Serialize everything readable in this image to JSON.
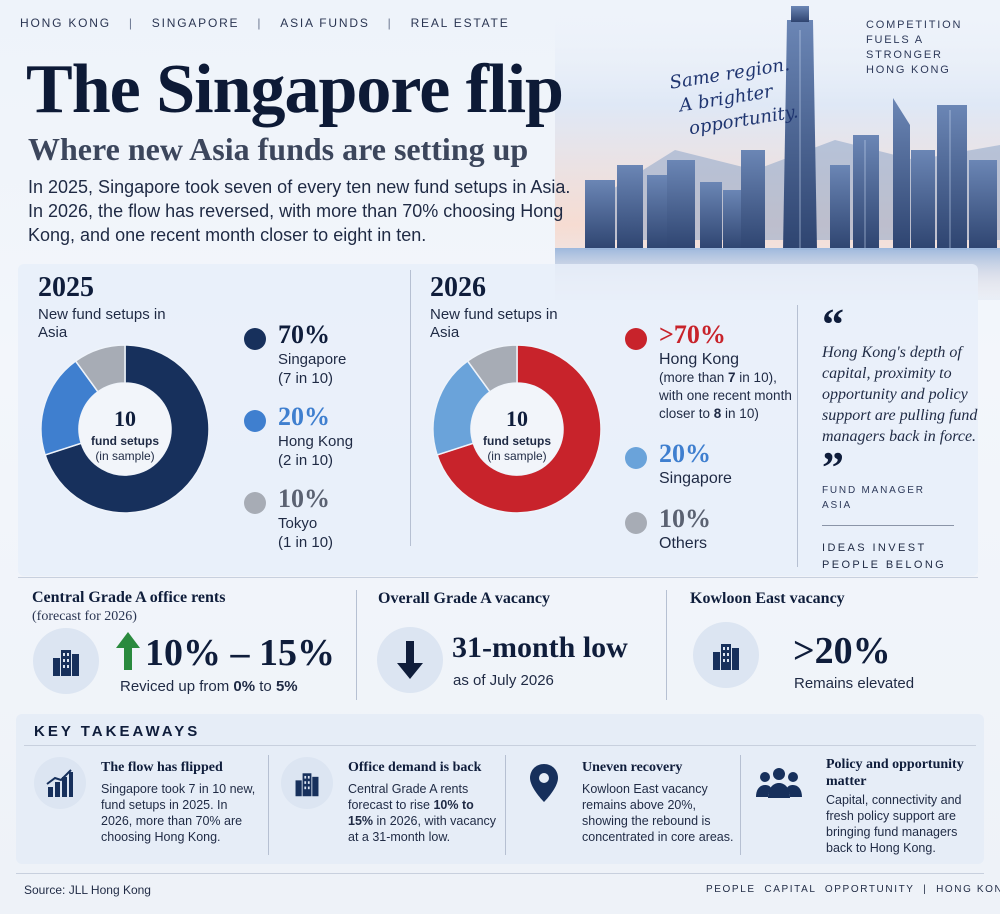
{
  "nav": {
    "items": [
      "HONG KONG",
      "SINGAPORE",
      "ASIA FUNDS",
      "REAL ESTATE"
    ],
    "separator": "|"
  },
  "corner_tag": [
    "COMPETITION",
    "FUELS A STRONGER",
    "HONG KONG"
  ],
  "title": "The Singapore flip",
  "subtitle": "Where new Asia funds are setting up",
  "intro": "In 2025, Singapore took seven of every ten new fund setups in Asia. In 2026, the flow has reversed, with more than 70% choosing Hong Kong, and one recent month closer to eight in ten.",
  "tagline": [
    "Same region.",
    "A brighter",
    "opportunity."
  ],
  "colors": {
    "navy": "#17305c",
    "mid_blue": "#3f7fcf",
    "light_blue": "#6aa3da",
    "grey": "#a7acb5",
    "red": "#c8232b",
    "green": "#2a8a3e"
  },
  "chart_data": [
    {
      "type": "pie",
      "title": "2025",
      "subtitle": "New fund setups in Asia",
      "center": {
        "value": "10",
        "label": "fund setups",
        "note": "(in sample)"
      },
      "slices": [
        {
          "name": "Singapore",
          "value": 70,
          "pct": "70%",
          "detail": "(7 in 10)",
          "color": "#17305c"
        },
        {
          "name": "Hong Kong",
          "value": 20,
          "pct": "20%",
          "detail": "(2 in 10)",
          "color": "#3f7fcf"
        },
        {
          "name": "Tokyo",
          "value": 10,
          "pct": "10%",
          "detail": "(1 in 10)",
          "color": "#a7acb5"
        }
      ]
    },
    {
      "type": "pie",
      "title": "2026",
      "subtitle": "New fund setups in Asia",
      "center": {
        "value": "10",
        "label": "fund setups",
        "note": "(in sample)"
      },
      "slices": [
        {
          "name": "Hong Kong",
          "value": 70,
          "pct": ">70%",
          "detail": "(more than 7 in 10), with one recent month closer to 8 in 10)",
          "color": "#c8232b"
        },
        {
          "name": "Singapore",
          "value": 20,
          "pct": "20%",
          "detail": "",
          "color": "#6aa3da"
        },
        {
          "name": "Others",
          "value": 10,
          "pct": "10%",
          "detail": "",
          "color": "#a7acb5"
        }
      ]
    }
  ],
  "quote": {
    "open": "“",
    "text": "Hong Kong's depth of capital, proximity to opportunity and policy support are pulling fund managers back in force.",
    "close": "”",
    "attribution": [
      "FUND MANAGER",
      "ASIA"
    ],
    "brand": [
      "IDEAS INVEST",
      "PEOPLE BELONG"
    ]
  },
  "metrics": [
    {
      "heading": "Central Grade A office rents",
      "sub": "(forecast for 2026)",
      "value": "10% – 15%",
      "note_prefix": "Reviced up from ",
      "note_a": "0%",
      "note_mid": " to ",
      "note_b": "5%",
      "icon": "office-building-icon",
      "arrow": "arrow-up-icon"
    },
    {
      "heading": "Overall Grade A vacancy",
      "value": "31-month low",
      "note": "as of July 2026",
      "icon": "arrow-down-icon"
    },
    {
      "heading": "Kowloon East vacancy",
      "value": ">20%",
      "note": "Remains elevated",
      "icon": "office-building-icon"
    }
  ],
  "takeaways": {
    "title": "KEY TAKEAWAYS",
    "items": [
      {
        "heading": "The flow has flipped",
        "body": "Singapore took 7 in 10 new, fund setups in 2025. In 2026, more than 70% are choosing Hong Kong.",
        "icon": "bar-chart-growth-icon"
      },
      {
        "heading": "Office demand is back",
        "body_a": "Central Grade A rents forecast to rise ",
        "body_b": "10% to 15%",
        "body_c": " in 2026, with vacancy at a 31-month low.",
        "icon": "office-building-icon"
      },
      {
        "heading": "Uneven recovery",
        "body": "Kowloon East vacancy remains above 20%, showing the rebound is concentrated in core areas.",
        "icon": "location-pin-icon"
      },
      {
        "heading": "Policy and opportunity matter",
        "body": "Capital, connectivity and fresh policy support are bringing fund managers back to Hong Kong.",
        "icon": "people-group-icon"
      }
    ]
  },
  "footer": {
    "source": "Source: JLL Hong Kong",
    "right": "PEOPLE  CAPITAL  OPPORTUNITY  |  HONG KONG"
  }
}
